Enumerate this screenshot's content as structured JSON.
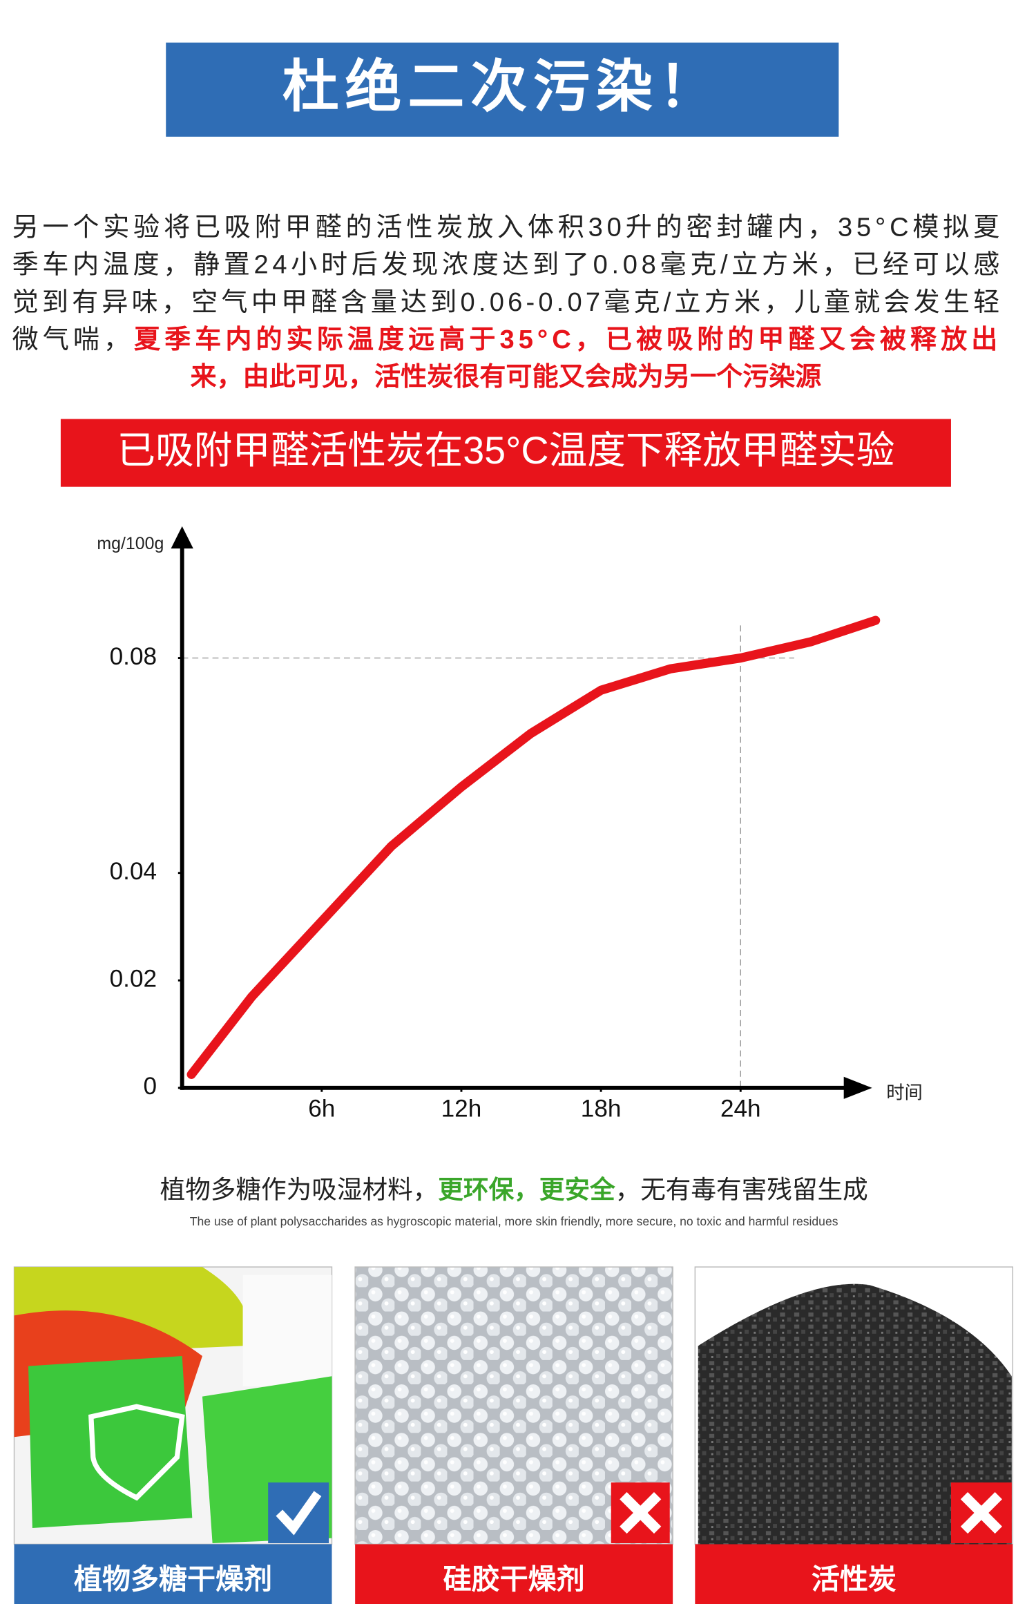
{
  "header": {
    "title": "杜绝二次污染！"
  },
  "intro": {
    "lines": [
      "另一个实验将已吸附甲醛的活性炭放入体积30升的密封罐内，35°C模拟夏",
      "季车内温度，静置24小时后发现浓度达到了0.08毫克/立方米，已经可以感",
      "觉到有异味，空气中甲醛含量达到0.06-0.07毫克/立方米，儿童就会发生轻"
    ],
    "line4": {
      "normal": "微气喘，",
      "highlight": "夏季车内的实际温度远高于35°C，已被吸附的甲醛又会被释放出"
    },
    "line5": "来，由此可见，活性炭很有可能又会成为另一个污染源"
  },
  "chart_data": {
    "type": "line",
    "title": "已吸附甲醛活性炭在35°C温度下释放甲醛实验",
    "y_label": "mg/100g",
    "x_label": "时间",
    "x": [
      0.4,
      3,
      6,
      9,
      12,
      15,
      18,
      21,
      24,
      27,
      29.8
    ],
    "values": [
      0.0025,
      0.017,
      0.031,
      0.045,
      0.056,
      0.066,
      0.074,
      0.078,
      0.08,
      0.083,
      0.087
    ],
    "color": "#e8141b",
    "xlim": [
      0,
      30
    ],
    "ylim": [
      0,
      0.1
    ],
    "xticks": [
      {
        "value": 6,
        "label": "6h"
      },
      {
        "value": 12,
        "label": "12h"
      },
      {
        "value": 18,
        "label": "18h"
      },
      {
        "value": 24,
        "label": "24h"
      }
    ],
    "yticks": [
      0,
      0.02,
      0.04,
      0.08
    ],
    "guides": [
      {
        "axis": "x",
        "value": 24
      },
      {
        "axis": "y",
        "value": 0.08
      }
    ]
  },
  "note": {
    "parts": [
      "植物多糖作为吸湿材料，",
      "更环保，更安全",
      "，无有毒有害残留生成"
    ],
    "english": "The use of plant polysaccharides as hygroscopic material, more skin friendly, more secure, no toxic and harmful residues"
  },
  "products": [
    {
      "label": "植物多糖干燥剂"
    },
    {
      "label": "硅胶干燥剂"
    },
    {
      "label": "活性炭"
    }
  ]
}
